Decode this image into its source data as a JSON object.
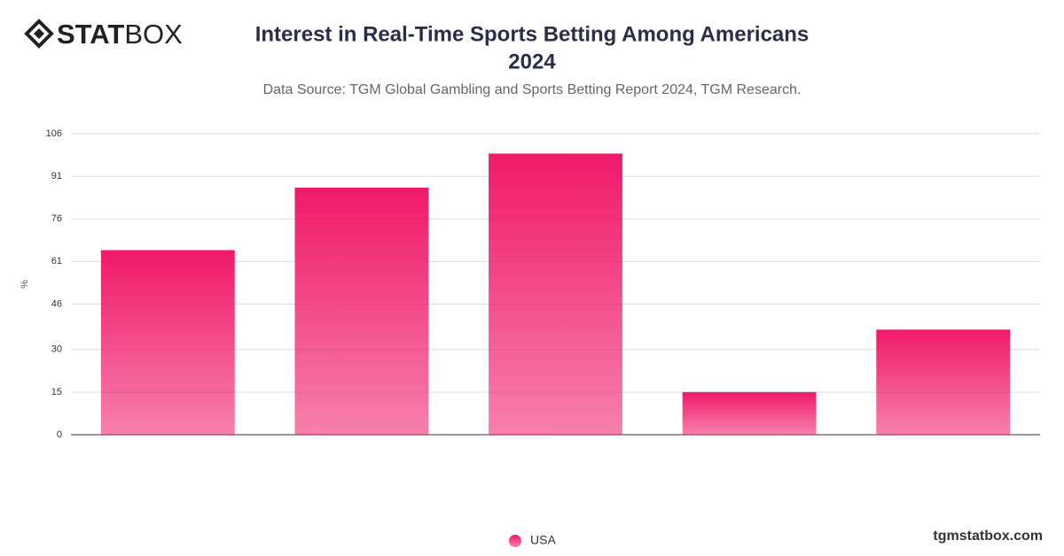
{
  "logo": [
    "STAT",
    "BOX"
  ],
  "website": "tgmstatbox.com",
  "chart_data": {
    "type": "bar",
    "title": [
      "Interest in Real-Time Sports Betting Among Americans",
      "2024"
    ],
    "subtitle": "Data Source: TGM Global Gambling and Sports Betting Report 2024, TGM Research.",
    "y_label": "%",
    "categories": [
      null,
      null,
      null,
      null,
      null
    ],
    "series": [
      {
        "name": "USA",
        "color": "#f0196a",
        "values": [
          65,
          87,
          99,
          15,
          37
        ]
      }
    ],
    "ylim": [
      0,
      106
    ],
    "yticks": [
      0,
      15,
      30,
      46,
      61,
      76,
      91,
      106
    ],
    "grid": true,
    "legend": "bottom"
  }
}
